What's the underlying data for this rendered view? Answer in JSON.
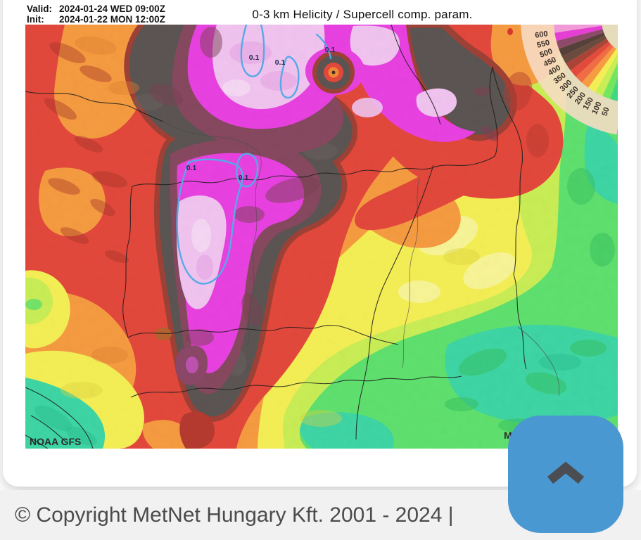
{
  "header": {
    "valid_label": "Valid:",
    "valid_value": "2024-01-24 WED 09:00Z",
    "init_label": "Init:",
    "init_value": "2024-01-22 MON 12:00Z",
    "title": "0-3 km Helicity / Supercell comp. param."
  },
  "map": {
    "source_label": "NOAA GFS",
    "watermark_partial": "M",
    "contour_label": "0.1",
    "legend": {
      "tick_values": [
        "600",
        "550",
        "500",
        "450",
        "400",
        "350",
        "300",
        "250",
        "200",
        "150",
        "100",
        "50"
      ],
      "bands": [
        {
          "range": "> 600",
          "color": "#F19AD8"
        },
        {
          "range": "550-600",
          "color": "#E33FD2"
        },
        {
          "range": "500-550",
          "color": "#8E4A6A"
        },
        {
          "range": "450-500",
          "color": "#56403A"
        },
        {
          "range": "400-450",
          "color": "#6C4B3F"
        },
        {
          "range": "350-400",
          "color": "#A94436"
        },
        {
          "range": "300-350",
          "color": "#E24A3C"
        },
        {
          "range": "250-300",
          "color": "#EF6C44"
        },
        {
          "range": "200-250",
          "color": "#F59B41"
        },
        {
          "range": "150-200",
          "color": "#F4EE55"
        },
        {
          "range": "100-150",
          "color": "#C9ED55"
        },
        {
          "range": "50-100",
          "color": "#74E55F"
        },
        {
          "range": "< 50",
          "color": "#3FD87E"
        }
      ]
    },
    "palette": {
      "pink_high": "#F0C4EF",
      "magenta": "#E841E0",
      "purple": "#86485F",
      "dark_gray": "#5B5452",
      "brick": "#9E4136",
      "red": "#E2483B",
      "orange": "#F59B41",
      "yellow": "#F4EE55",
      "yellow_green": "#C9ED55",
      "green": "#5FE06E",
      "teal": "#3ED5A4",
      "contour_blue": "#57A9E8",
      "button_blue": "#4A98D1"
    }
  },
  "footer": {
    "copyright": "© Copyright MetNet Hungary Kft. 2001 - 2024 |"
  },
  "scroll_top_button": {
    "icon": "chevron-up"
  }
}
